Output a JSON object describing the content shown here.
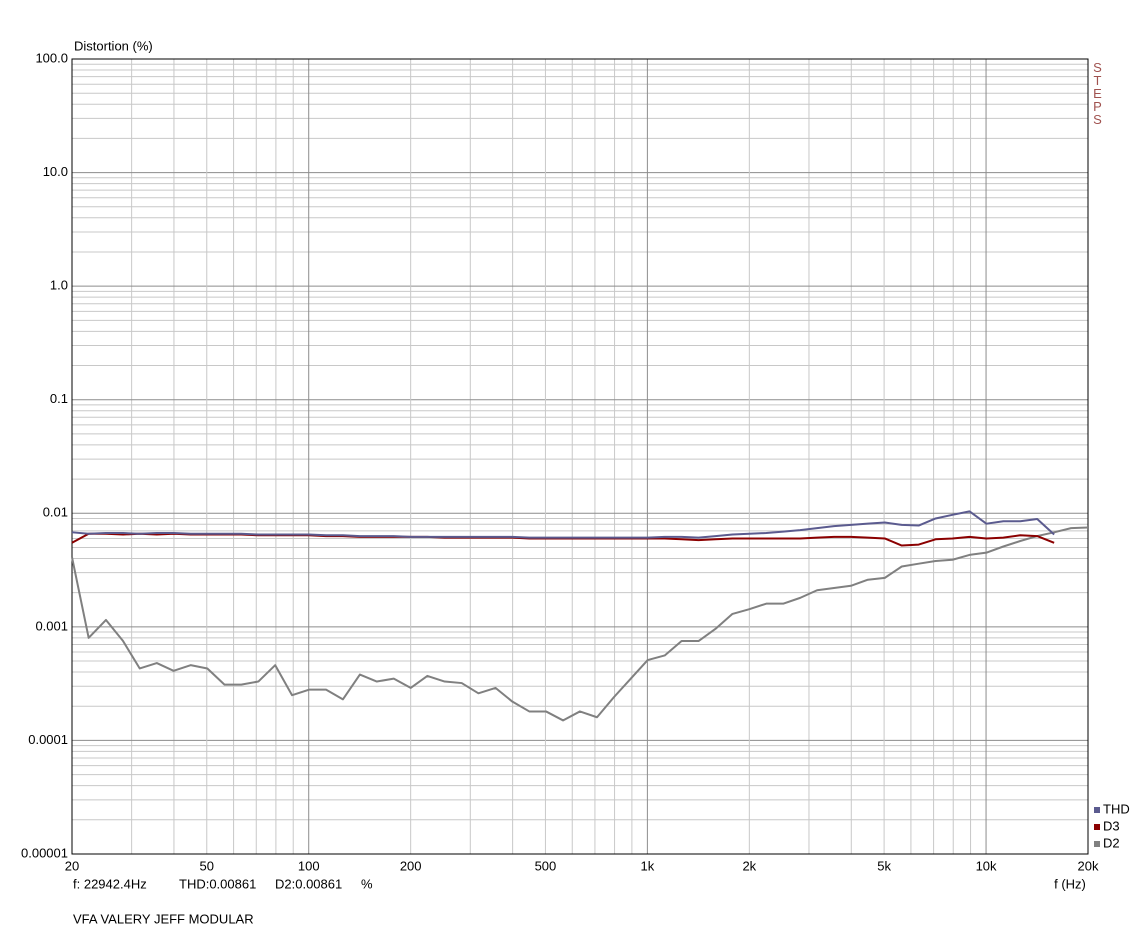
{
  "chart_data": {
    "type": "line",
    "title": "Distortion (%)",
    "x_label": "f (Hz)",
    "side_label": "STEPS",
    "status": [
      "f: 22942.4Hz",
      "THD:0.00861",
      "D2:0.00861",
      "%"
    ],
    "footer": "VFA VALERY JEFF MODULAR",
    "log_x": true,
    "log_y": true,
    "grid": true,
    "legend": "bottom-right",
    "xlim": [
      20,
      20000
    ],
    "ylim": [
      1e-05,
      100
    ],
    "xticks": [
      20,
      50,
      100,
      200,
      500,
      {
        "value": 1000,
        "label": "1k"
      },
      {
        "value": 2000,
        "label": "2k"
      },
      {
        "value": 5000,
        "label": "5k"
      },
      {
        "value": 10000,
        "label": "10k"
      },
      {
        "value": 20000,
        "label": "20k"
      }
    ],
    "yticks": [
      {
        "value": 100,
        "label": "100.0"
      },
      {
        "value": 10,
        "label": "10.0"
      },
      {
        "value": 1,
        "label": "1.0"
      },
      0.1,
      0.01,
      0.001,
      0.0001,
      1e-05
    ],
    "x": [
      20,
      22.4,
      25.2,
      28.3,
      31.7,
      35.6,
      39.9,
      44.8,
      50.2,
      56.4,
      63.2,
      71.0,
      79.6,
      89.3,
      100.2,
      112.5,
      126.2,
      141.6,
      158.9,
      178.3,
      200,
      224,
      252,
      283,
      317,
      356,
      399,
      448,
      502,
      564,
      632,
      710,
      796,
      893,
      1002,
      1125,
      1262,
      1416,
      1589,
      1783,
      2000,
      2244,
      2518,
      2825,
      3170,
      3557,
      3991,
      4477,
      5024,
      5637,
      6325,
      7096,
      7962,
      8934,
      10024,
      11247,
      12619,
      14159,
      15887,
      17825,
      20000
    ],
    "series": [
      {
        "name": "THD",
        "color": "#5b5b8f",
        "values": [
          0.0068,
          0.0066,
          0.0067,
          0.0067,
          0.0066,
          0.0067,
          0.0067,
          0.0066,
          0.0066,
          0.0066,
          0.0066,
          0.0065,
          0.0065,
          0.0065,
          0.0065,
          0.0064,
          0.0064,
          0.0063,
          0.0063,
          0.0063,
          0.0062,
          0.0062,
          0.0062,
          0.0062,
          0.0062,
          0.0062,
          0.0062,
          0.0061,
          0.0061,
          0.0061,
          0.0061,
          0.0061,
          0.0061,
          0.0061,
          0.0061,
          0.0062,
          0.0062,
          0.0061,
          0.0063,
          0.0065,
          0.0066,
          0.0067,
          0.0069,
          0.0071,
          0.0074,
          0.0077,
          0.0079,
          0.0081,
          0.0083,
          0.0079,
          0.0078,
          0.009,
          0.0097,
          0.0104,
          0.0081,
          0.0085,
          0.0085,
          0.0089,
          0.0065,
          null,
          null
        ]
      },
      {
        "name": "D3",
        "color": "#8b0000",
        "values": [
          0.0055,
          0.0066,
          0.0066,
          0.0065,
          0.0066,
          0.0065,
          0.0066,
          0.0065,
          0.0065,
          0.0065,
          0.0065,
          0.0064,
          0.0064,
          0.0064,
          0.0064,
          0.0063,
          0.0063,
          0.0062,
          0.0062,
          0.0062,
          0.0062,
          0.0062,
          0.0061,
          0.0061,
          0.0061,
          0.0061,
          0.0061,
          0.006,
          0.006,
          0.006,
          0.006,
          0.006,
          0.006,
          0.006,
          0.006,
          0.006,
          0.0059,
          0.0058,
          0.0059,
          0.006,
          0.006,
          0.006,
          0.006,
          0.006,
          0.0061,
          0.0062,
          0.0062,
          0.0061,
          0.006,
          0.0052,
          0.0053,
          0.0059,
          0.006,
          0.0062,
          0.006,
          0.0061,
          0.0064,
          0.0063,
          0.0055,
          null,
          null
        ]
      },
      {
        "name": "D2",
        "color": "#808080",
        "values": [
          0.0041,
          0.0008,
          0.00115,
          0.00075,
          0.00043,
          0.00048,
          0.00041,
          0.00046,
          0.00043,
          0.00031,
          0.00031,
          0.00033,
          0.00046,
          0.00025,
          0.00028,
          0.00028,
          0.00023,
          0.00038,
          0.00033,
          0.00035,
          0.00029,
          0.00037,
          0.00033,
          0.00032,
          0.00026,
          0.00029,
          0.00022,
          0.00018,
          0.00018,
          0.00015,
          0.00018,
          0.00016,
          0.00024,
          0.00035,
          0.00051,
          0.00056,
          0.00075,
          0.00075,
          0.00096,
          0.0013,
          0.00143,
          0.0016,
          0.0016,
          0.0018,
          0.0021,
          0.0022,
          0.0023,
          0.0026,
          0.0027,
          0.0034,
          0.0036,
          0.0038,
          0.0039,
          0.0043,
          0.0045,
          0.0051,
          0.0057,
          0.0063,
          0.0068,
          0.0074,
          0.0075
        ]
      }
    ]
  }
}
